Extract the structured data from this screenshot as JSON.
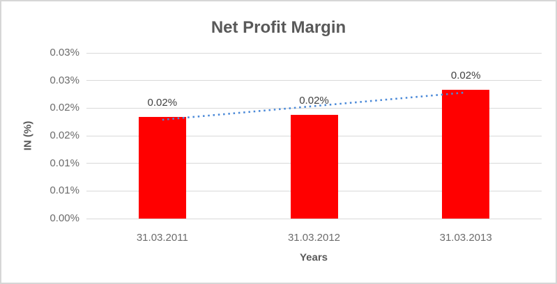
{
  "chart_data": {
    "type": "bar",
    "title": "Net Profit Margin",
    "xlabel": "Years",
    "ylabel": "IN (%)",
    "categories": [
      "31.03.2011",
      "31.03.2012",
      "31.03.2013"
    ],
    "values": [
      0.0184,
      0.0188,
      0.0233
    ],
    "data_labels": [
      "0.02%",
      "0.02%",
      "0.02%"
    ],
    "y_tick_labels": [
      "0.03%",
      "0.03%",
      "0.02%",
      "0.02%",
      "0.01%",
      "0.01%",
      "0.00%"
    ],
    "ylim": [
      0,
      0.03
    ],
    "y_unit": "%",
    "grid": true,
    "legend": "none",
    "bar_color": "#FF0000",
    "trendline": {
      "type": "linear",
      "style": "dotted",
      "color": "#4a89d8",
      "start": 0.0179,
      "end": 0.0228
    },
    "colors": {
      "title_text": "#595959",
      "tick_text": "#6b6b6b",
      "data_label_text": "#404040",
      "gridline": "#d9d9d9",
      "frame_border": "#d6d6d6"
    }
  }
}
